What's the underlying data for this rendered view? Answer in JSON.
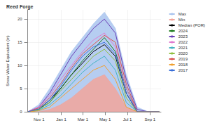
{
  "chart_data": {
    "type": "line",
    "title": "Reed Forge",
    "y_label": "Snow Water Equivalent (in)",
    "x": [
      0,
      30,
      60,
      90,
      120,
      150,
      180,
      210,
      240,
      270,
      300,
      330,
      360
    ],
    "xlim": [
      0,
      365
    ],
    "xticks": [
      {
        "value": 31,
        "label": "Nov 1"
      },
      {
        "value": 92,
        "label": "Jan 1"
      },
      {
        "value": 151,
        "label": "Mar 1"
      },
      {
        "value": 212,
        "label": "May 1"
      },
      {
        "value": 273,
        "label": "Jul 1"
      },
      {
        "value": 335,
        "label": "Sep 1"
      }
    ],
    "ylim": [
      0,
      22
    ],
    "yticks": [
      0,
      5,
      10,
      15,
      20
    ],
    "grid": true,
    "legend": "right",
    "series": [
      {
        "name": "Max",
        "type": "area",
        "color": "#a9c4ef",
        "values": [
          0,
          1.5,
          5,
          9,
          13,
          16,
          19,
          21.5,
          18,
          8,
          1,
          0,
          0
        ]
      },
      {
        "name": "Min",
        "type": "area",
        "color": "#f2a59b",
        "values": [
          0,
          0,
          0.5,
          1.5,
          3,
          5,
          7,
          8,
          5,
          1,
          0,
          0,
          0
        ]
      },
      {
        "name": "Median (POR)",
        "type": "line",
        "color": "#000000",
        "values": [
          0,
          0.5,
          2.5,
          5,
          8,
          10.5,
          13,
          14.5,
          12,
          4,
          0,
          0,
          0
        ]
      },
      {
        "name": "2024",
        "type": "line",
        "color": "#1b7a1b",
        "values": [
          0,
          0.5,
          2,
          5,
          8,
          11,
          13.5,
          16,
          13,
          5,
          0,
          0,
          0
        ]
      },
      {
        "name": "2023",
        "type": "line",
        "color": "#6a3fb5",
        "values": [
          0,
          1,
          4,
          8,
          12,
          15,
          18,
          20,
          17,
          7,
          0.5,
          0,
          0
        ]
      },
      {
        "name": "2022",
        "type": "line",
        "color": "#e07bd0",
        "values": [
          0,
          1,
          3.5,
          7,
          10,
          13,
          15.5,
          17,
          14,
          5,
          0,
          0,
          0
        ]
      },
      {
        "name": "2021",
        "type": "line",
        "color": "#44b3c2",
        "values": [
          0,
          0.3,
          1.5,
          3.5,
          6,
          8.5,
          10.5,
          12,
          9,
          2,
          0,
          0,
          0
        ]
      },
      {
        "name": "2020",
        "type": "line",
        "color": "#8fbf3f",
        "values": [
          0,
          0.5,
          2,
          4.5,
          7,
          9.5,
          12,
          13.5,
          11,
          3,
          0,
          0,
          0
        ]
      },
      {
        "name": "2019",
        "type": "line",
        "color": "#d9534f",
        "values": [
          0,
          0.8,
          3,
          6,
          9.5,
          12.5,
          14.5,
          16.5,
          15,
          6,
          0,
          0,
          0
        ]
      },
      {
        "name": "2018",
        "type": "line",
        "color": "#f0a030",
        "values": [
          0,
          0.2,
          1,
          3,
          5,
          7,
          9,
          10,
          7,
          1,
          0,
          0,
          0
        ]
      },
      {
        "name": "2017",
        "type": "line",
        "color": "#3a6fd8",
        "values": [
          0,
          0.6,
          2.5,
          5.5,
          9,
          12,
          14,
          15,
          12.5,
          4,
          0,
          0,
          0
        ]
      }
    ]
  }
}
